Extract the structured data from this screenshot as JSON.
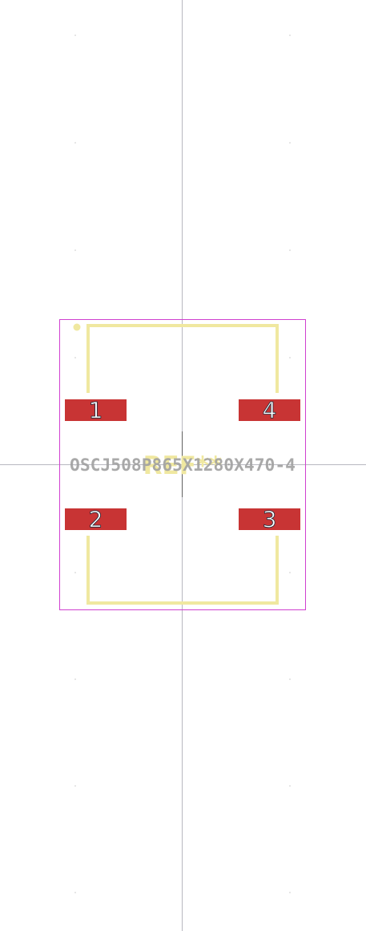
{
  "footprint": {
    "value_text": "OSCJ508P865X1280X470-4",
    "reference_text": "REF**",
    "pads": [
      {
        "number": "1"
      },
      {
        "number": "4"
      },
      {
        "number": "2"
      },
      {
        "number": "3"
      }
    ]
  },
  "colors": {
    "background": "#ffffff",
    "crosshair": "#b8b8c0",
    "grid_dot": "#c8c8c8",
    "courtyard": "#d040d0",
    "silkscreen": "#f0e8a0",
    "pad": "#c83434",
    "pad_label": "#ffffff",
    "value_text": "#a0a0a0",
    "anchor": "#606060"
  }
}
